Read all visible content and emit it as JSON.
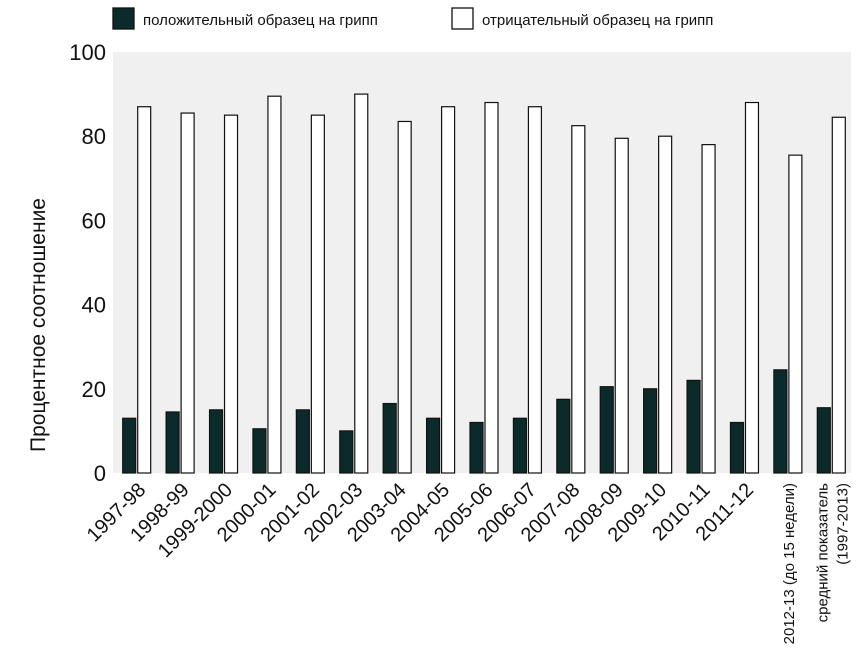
{
  "chart_data": {
    "type": "bar",
    "title": "",
    "xlabel": "",
    "ylabel": "Процентное соотношение",
    "ylim": [
      0,
      100
    ],
    "yticks": [
      0,
      20,
      40,
      60,
      80,
      100
    ],
    "grid": false,
    "legend_position": "top",
    "categories": [
      "1997-98",
      "1998-99",
      "1999-2000",
      "2000-01",
      "2001-02",
      "2002-03",
      "2003-04",
      "2004-05",
      "2005-06",
      "2006-07",
      "2007-08",
      "2008-09",
      "2009-10",
      "2010-11",
      "2011-12",
      "2012-13 (до 15 недели)",
      "средний показатель (1997-2013)"
    ],
    "series": [
      {
        "name": "положительный образец на грипп",
        "color": "#0b2b2b",
        "values": [
          13,
          14.5,
          15,
          10.5,
          15,
          10,
          16.5,
          13,
          12,
          13,
          17.5,
          20.5,
          20,
          22,
          12,
          24.5,
          15.5
        ]
      },
      {
        "name": "отрицательный образец на грипп",
        "color": "#ffffff",
        "values": [
          87,
          85.5,
          85,
          89.5,
          85,
          90,
          83.5,
          87,
          88,
          87,
          82.5,
          79.5,
          80,
          78,
          88,
          75.5,
          84.5
        ]
      }
    ],
    "plot_background": "#f0f0f0"
  }
}
